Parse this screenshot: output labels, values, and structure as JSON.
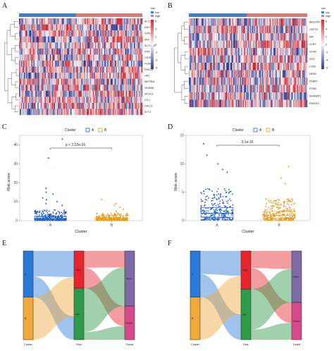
{
  "panels": {
    "A": "A",
    "B": "B",
    "C": "C",
    "D": "D",
    "E": "E",
    "F": "F"
  },
  "colors": {
    "cluster_a": "#3a7fd5",
    "cluster_b": "#e8756d",
    "point_a": "#1f5fc0",
    "point_b": "#e69a1e",
    "heat_high": "#d7262e",
    "heat_mid": "#f7f4f4",
    "heat_low": "#2b3d96",
    "risk_high": "#e5262f",
    "risk_low": "#2f9a48",
    "fustat_alive": "#7d6aa6",
    "fustat_dead": "#d64a8a",
    "alluvial_cluster_a": "#2a7ad8",
    "alluvial_cluster_b": "#f2a93b"
  },
  "heatmap_a": {
    "legend_title": "risk",
    "legend_items": [
      "low",
      "high"
    ],
    "scale_ticks": [
      "6",
      "4",
      "2",
      "0",
      "-2",
      "-4",
      "-6"
    ],
    "genes": [
      "SLC2B2",
      "DDIT4",
      "STAC",
      "VRC",
      "SLC25A6",
      "ATM",
      "CD7B6",
      "VCAN",
      "PNCC6",
      "GK3",
      "METRNL",
      "TASK58",
      "SKOC3",
      "LYL1",
      "CALC2",
      "SCY1"
    ]
  },
  "heatmap_b": {
    "legend_title": "risk",
    "legend_items": [
      "low",
      "high"
    ],
    "scale_ticks": [
      "6",
      "4",
      "2",
      "0",
      "-2",
      "-4",
      "-6"
    ],
    "genes": [
      "ABLSSP1",
      "CEPT8",
      "MIF",
      "GLRX",
      "VCAN",
      "GFD",
      "COGI",
      "HEXB",
      "FKBP2",
      "FOSB",
      "SH3KBP1",
      "RASSF1"
    ]
  },
  "chart_data": [
    {
      "panel": "C",
      "type": "boxplot",
      "legend_title": "Cluster",
      "legend_entries": [
        "A",
        "B"
      ],
      "categories": [
        "A",
        "B"
      ],
      "xlabel": "Cluster",
      "ylabel": "Risk score",
      "ylim": [
        0,
        45
      ],
      "yticks": [
        0,
        10,
        20,
        30,
        40
      ],
      "annotation": "p < 2.22e-16",
      "series": [
        {
          "name": "A",
          "median": 1.2,
          "q1": 0.5,
          "q3": 2.3,
          "outliers": [
            43,
            33,
            17,
            15,
            14,
            12,
            11,
            10,
            9,
            8
          ]
        },
        {
          "name": "B",
          "median": 0.9,
          "q1": 0.4,
          "q3": 1.6,
          "outliers": [
            11,
            9,
            8,
            7,
            6,
            5
          ]
        }
      ]
    },
    {
      "panel": "D",
      "type": "boxplot",
      "legend_title": "Cluster",
      "legend_entries": [
        "A",
        "B"
      ],
      "categories": [
        "A",
        "B"
      ],
      "xlabel": "Cluster",
      "ylabel": "Risk score",
      "ylim": [
        0,
        15
      ],
      "yticks": [
        0,
        5,
        10,
        15
      ],
      "annotation": "3.1e-16",
      "series": [
        {
          "name": "A",
          "median": 1.3,
          "q1": 0.6,
          "q3": 2.3,
          "outliers": [
            13.5,
            11.5,
            10,
            9,
            8.5
          ]
        },
        {
          "name": "B",
          "median": 0.9,
          "q1": 0.4,
          "q3": 1.6,
          "outliers": [
            9.5,
            7.5,
            6.5
          ]
        }
      ]
    },
    {
      "panel": "E",
      "type": "alluvial",
      "axes": [
        "Cluster",
        "Risk",
        "Fustat"
      ],
      "strata": {
        "Cluster": [
          "A",
          "B"
        ],
        "Risk": [
          "High",
          "low"
        ],
        "Fustat": [
          "Alive",
          "Dead"
        ]
      },
      "stratum_fractions": {
        "Cluster": [
          0.52,
          0.48
        ],
        "Risk": [
          0.42,
          0.58
        ],
        "Fustat": [
          0.62,
          0.38
        ]
      }
    },
    {
      "panel": "F",
      "type": "alluvial",
      "axes": [
        "Cluster",
        "Risk",
        "Fustat"
      ],
      "strata": {
        "Cluster": [
          "A",
          "B"
        ],
        "Risk": [
          "High",
          "low"
        ],
        "Fustat": [
          "Alive",
          "Dead"
        ]
      },
      "stratum_fractions": {
        "Cluster": [
          0.52,
          0.48
        ],
        "Risk": [
          0.43,
          0.57
        ],
        "Fustat": [
          0.58,
          0.42
        ]
      }
    }
  ]
}
